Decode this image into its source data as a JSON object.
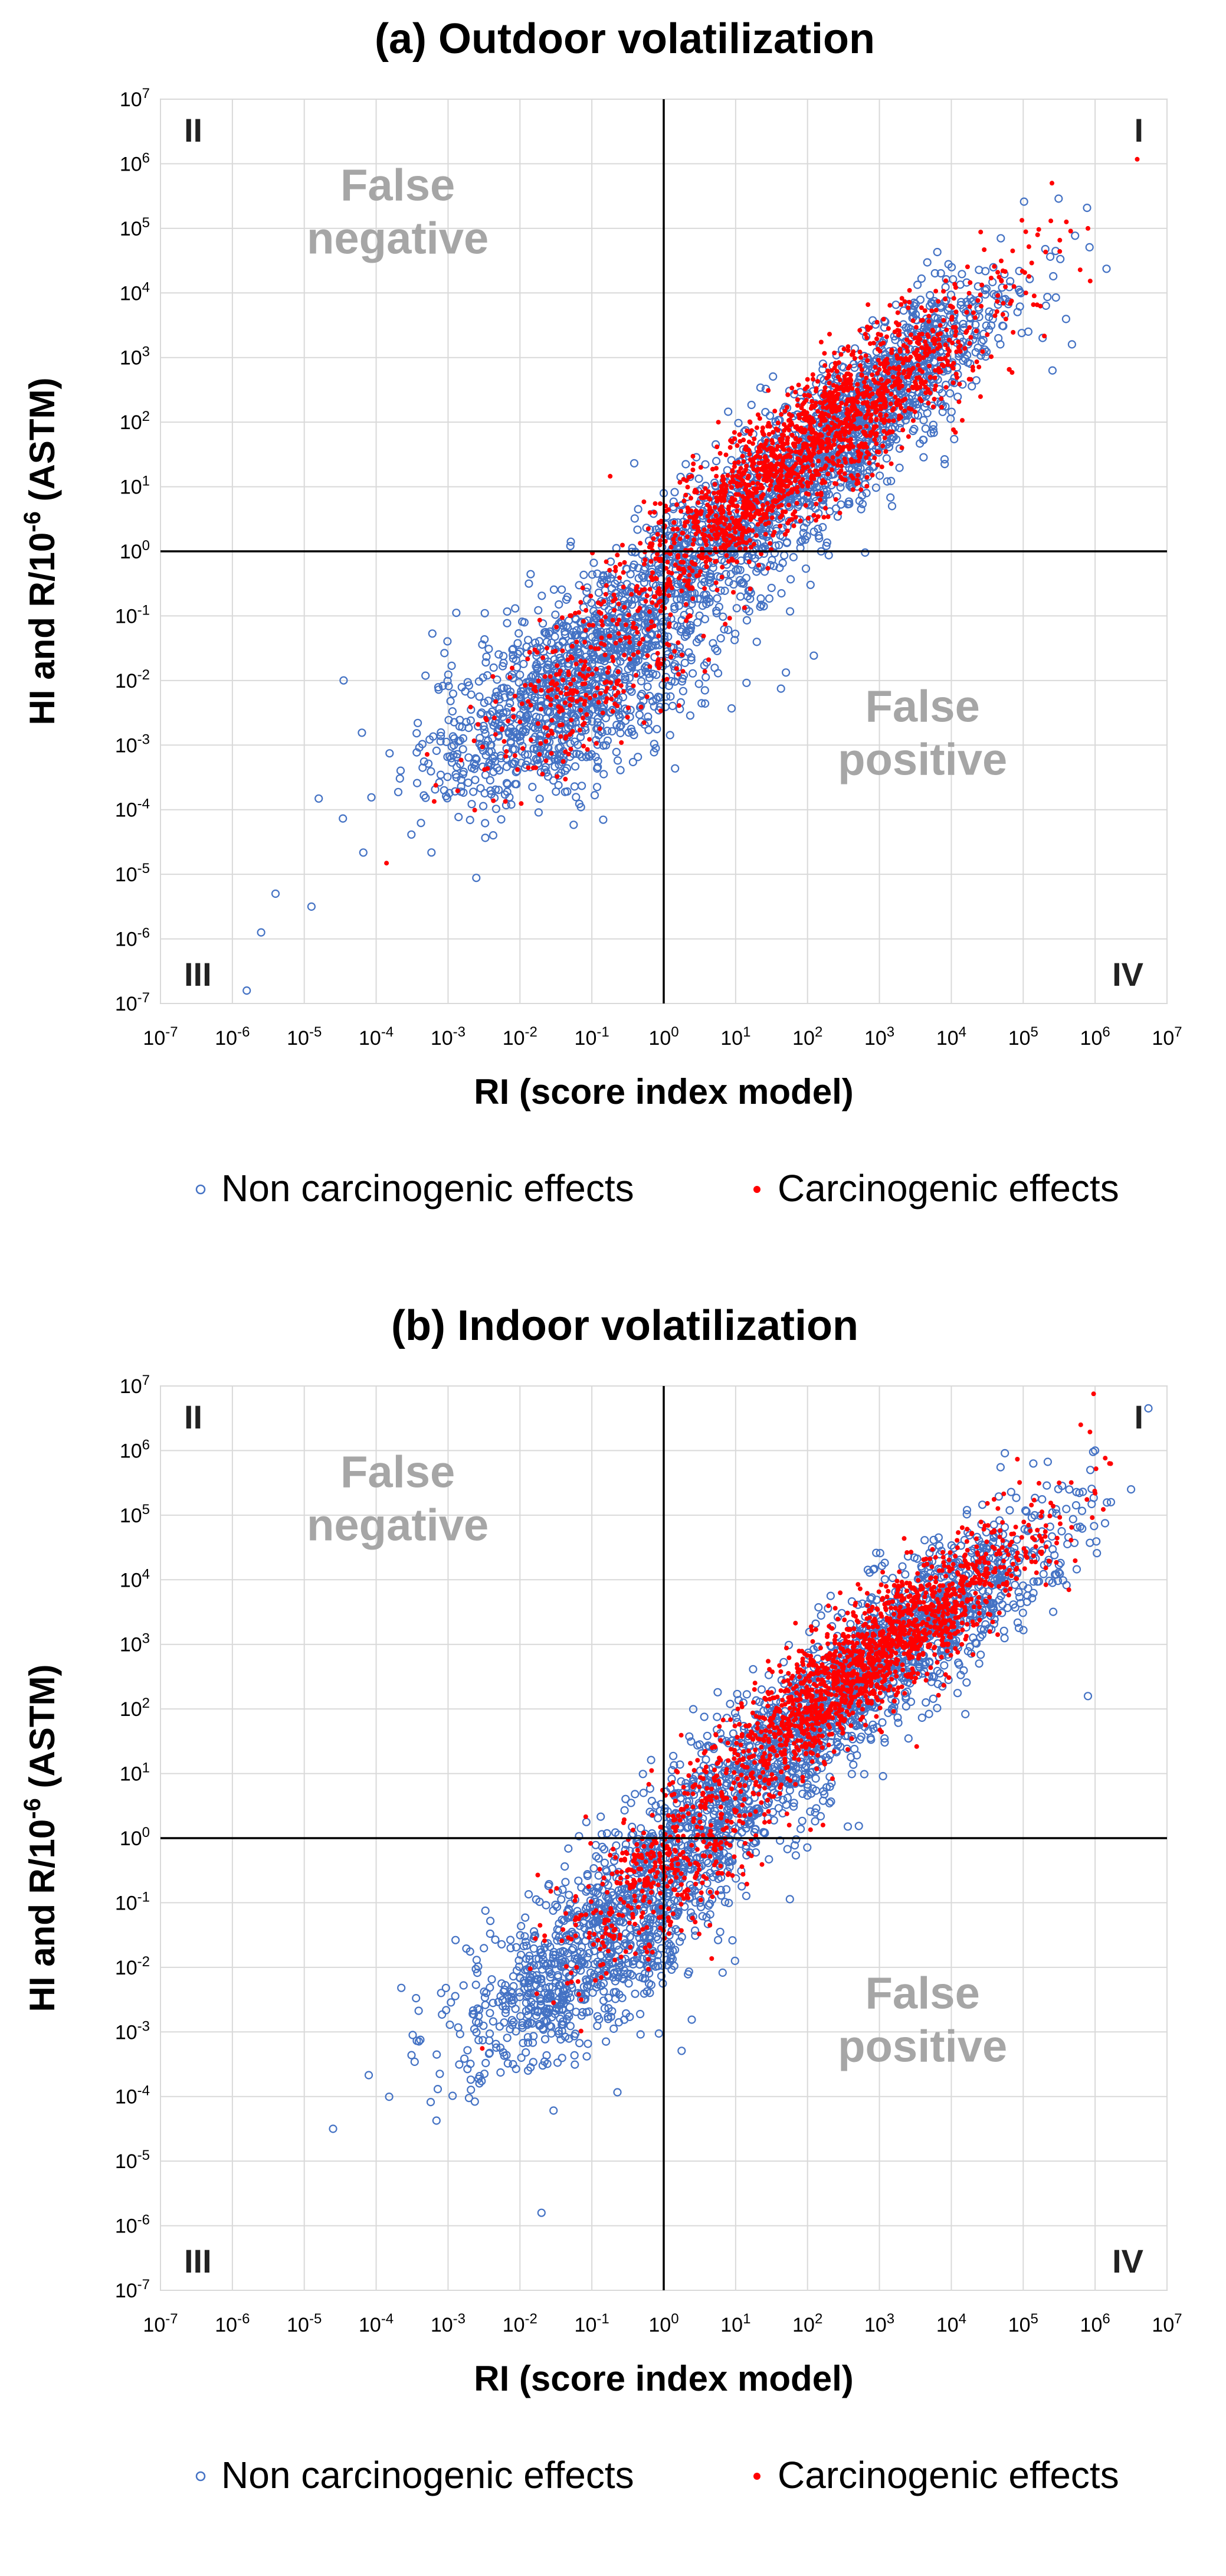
{
  "chart_data": [
    {
      "type": "scatter",
      "title": "(a) Outdoor volatilization",
      "xlabel": "RI (score index model)",
      "ylabel": "HI and R/10",
      "ylabel_sup": "-6",
      "ylabel_suffix": " (ASTM)",
      "x_scale": "log10",
      "y_scale": "log10",
      "xlim_exp": [
        -7,
        7
      ],
      "ylim_exp": [
        -7,
        7
      ],
      "tick_base": "10",
      "tick_exponents": [
        -7,
        -6,
        -5,
        -4,
        -3,
        -2,
        -1,
        0,
        1,
        2,
        3,
        4,
        5,
        6,
        7
      ],
      "reference_lines": {
        "x": 1,
        "y": 1
      },
      "grid": true,
      "quadrant_labels": {
        "I": "I",
        "II": "II",
        "III": "III",
        "IV": "IV"
      },
      "region_labels": {
        "false_negative": [
          "False",
          "negative"
        ],
        "false_positive": [
          "False",
          "positive"
        ]
      },
      "series": [
        {
          "name": "Non carcinogenic effects",
          "color": "#4472c4",
          "marker": "open-circle",
          "approx_point_count": 3000,
          "clusters": [
            {
              "log_x_mean": -1.3,
              "log_y_mean": -2.2,
              "log_x_sd": 1.0,
              "log_y_sd": 0.9,
              "corr": 0.6,
              "share": 0.35
            },
            {
              "log_x_mean": 1.0,
              "log_y_mean": 0.4,
              "log_x_sd": 1.3,
              "log_y_sd": 1.2,
              "corr": 0.85,
              "share": 0.35
            },
            {
              "log_x_mean": 3.0,
              "log_y_mean": 2.4,
              "log_x_sd": 1.0,
              "log_y_sd": 1.0,
              "corr": 0.85,
              "share": 0.3
            }
          ],
          "points": [
            [
              -5.8,
              -6.8
            ],
            [
              -5.6,
              -5.9
            ],
            [
              -5.4,
              -5.3
            ],
            [
              -4.9,
              -5.5
            ],
            [
              0.0,
              0.9
            ]
          ]
        },
        {
          "name": "Carcinogenic effects",
          "color": "#ff0000",
          "marker": "small-dot",
          "approx_point_count": 2000,
          "clusters": [
            {
              "log_x_mean": 2.0,
              "log_y_mean": 1.6,
              "log_x_sd": 1.3,
              "log_y_sd": 1.2,
              "corr": 0.9,
              "share": 0.85
            },
            {
              "log_x_mean": -1.0,
              "log_y_mean": -2.0,
              "log_x_sd": 0.8,
              "log_y_sd": 0.8,
              "corr": 0.7,
              "share": 0.15
            }
          ],
          "points": [
            [
              5.4,
              5.7
            ],
            [
              5.9,
              5.0
            ],
            [
              5.6,
              5.1
            ],
            [
              5.2,
              4.9
            ]
          ]
        }
      ]
    },
    {
      "type": "scatter",
      "title": "(b) Indoor volatilization",
      "xlabel": "RI (score index model)",
      "ylabel": "HI and R/10",
      "ylabel_sup": "-6",
      "ylabel_suffix": " (ASTM)",
      "x_scale": "log10",
      "y_scale": "log10",
      "xlim_exp": [
        -7,
        7
      ],
      "ylim_exp": [
        -7,
        7
      ],
      "tick_base": "10",
      "tick_exponents": [
        -7,
        -6,
        -5,
        -4,
        -3,
        -2,
        -1,
        0,
        1,
        2,
        3,
        4,
        5,
        6,
        7
      ],
      "reference_lines": {
        "x": 1,
        "y": 1
      },
      "grid": true,
      "quadrant_labels": {
        "I": "I",
        "II": "II",
        "III": "III",
        "IV": "IV"
      },
      "region_labels": {
        "false_negative": [
          "False",
          "negative"
        ],
        "false_positive": [
          "False",
          "positive"
        ]
      },
      "series": [
        {
          "name": "Non carcinogenic effects",
          "color": "#4472c4",
          "marker": "open-circle",
          "approx_point_count": 3000,
          "clusters": [
            {
              "log_x_mean": -1.0,
              "log_y_mean": -1.8,
              "log_x_sd": 1.0,
              "log_y_sd": 0.9,
              "corr": 0.7,
              "share": 0.3
            },
            {
              "log_x_mean": 1.2,
              "log_y_mean": 0.9,
              "log_x_sd": 1.2,
              "log_y_sd": 1.2,
              "corr": 0.85,
              "share": 0.35
            },
            {
              "log_x_mean": 3.5,
              "log_y_mean": 3.2,
              "log_x_sd": 1.1,
              "log_y_sd": 1.0,
              "corr": 0.85,
              "share": 0.35
            }
          ],
          "points": [
            [
              -4.6,
              -4.5
            ],
            [
              -1.7,
              -5.8
            ],
            [
              6.0,
              6.0
            ],
            [
              6.5,
              5.4
            ],
            [
              5.9,
              2.2
            ]
          ]
        },
        {
          "name": "Carcinogenic effects",
          "color": "#ff0000",
          "marker": "small-dot",
          "approx_point_count": 2000,
          "clusters": [
            {
              "log_x_mean": 2.8,
              "log_y_mean": 2.7,
              "log_x_sd": 1.2,
              "log_y_sd": 1.1,
              "corr": 0.9,
              "share": 0.8
            },
            {
              "log_x_mean": 0.0,
              "log_y_mean": -0.6,
              "log_x_sd": 0.8,
              "log_y_sd": 0.8,
              "corr": 0.7,
              "share": 0.2
            }
          ],
          "points": [
            [
              5.8,
              6.4
            ],
            [
              6.2,
              5.8
            ],
            [
              5.5,
              5.5
            ]
          ]
        }
      ]
    }
  ]
}
